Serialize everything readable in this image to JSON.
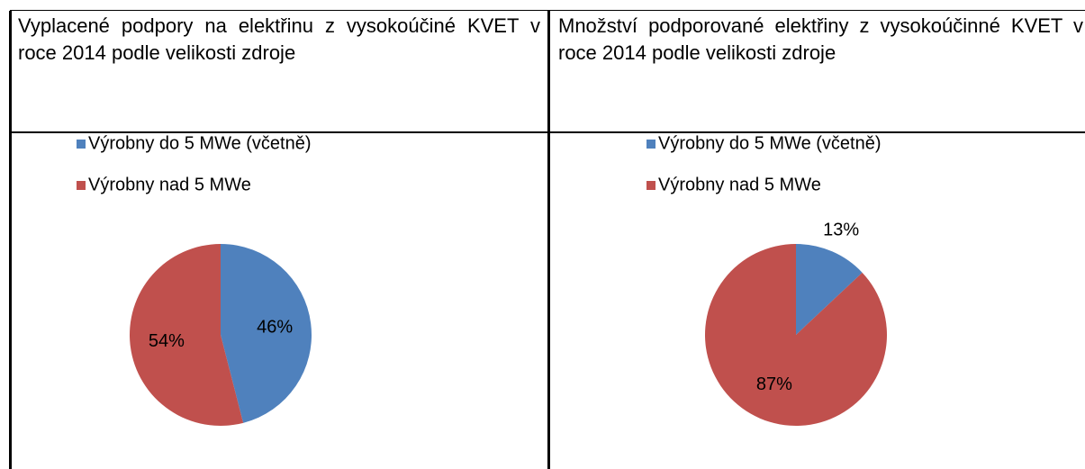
{
  "table": {
    "headers": [
      "Vyplacené podpory na elektřinu z vysokoúčiné KVET v roce 2014 podle velikosti zdroje",
      "Množství podporované elektřiny z vysokoúčinné KVET v roce 2014 podle velikosti zdroje"
    ]
  },
  "chart_data": [
    {
      "type": "pie",
      "categories": [
        "Výrobny do 5 MWe (včetně)",
        "Výrobny nad 5 MWe"
      ],
      "values": [
        46,
        54
      ],
      "value_labels": [
        "46%",
        "54%"
      ],
      "colors": [
        "#4f81bd",
        "#c0504d"
      ]
    },
    {
      "type": "pie",
      "categories": [
        "Výrobny do 5 MWe (včetně)",
        "Výrobny nad 5 MWe"
      ],
      "values": [
        13,
        87
      ],
      "value_labels": [
        "13%",
        "87%"
      ],
      "colors": [
        "#4f81bd",
        "#c0504d"
      ]
    }
  ]
}
